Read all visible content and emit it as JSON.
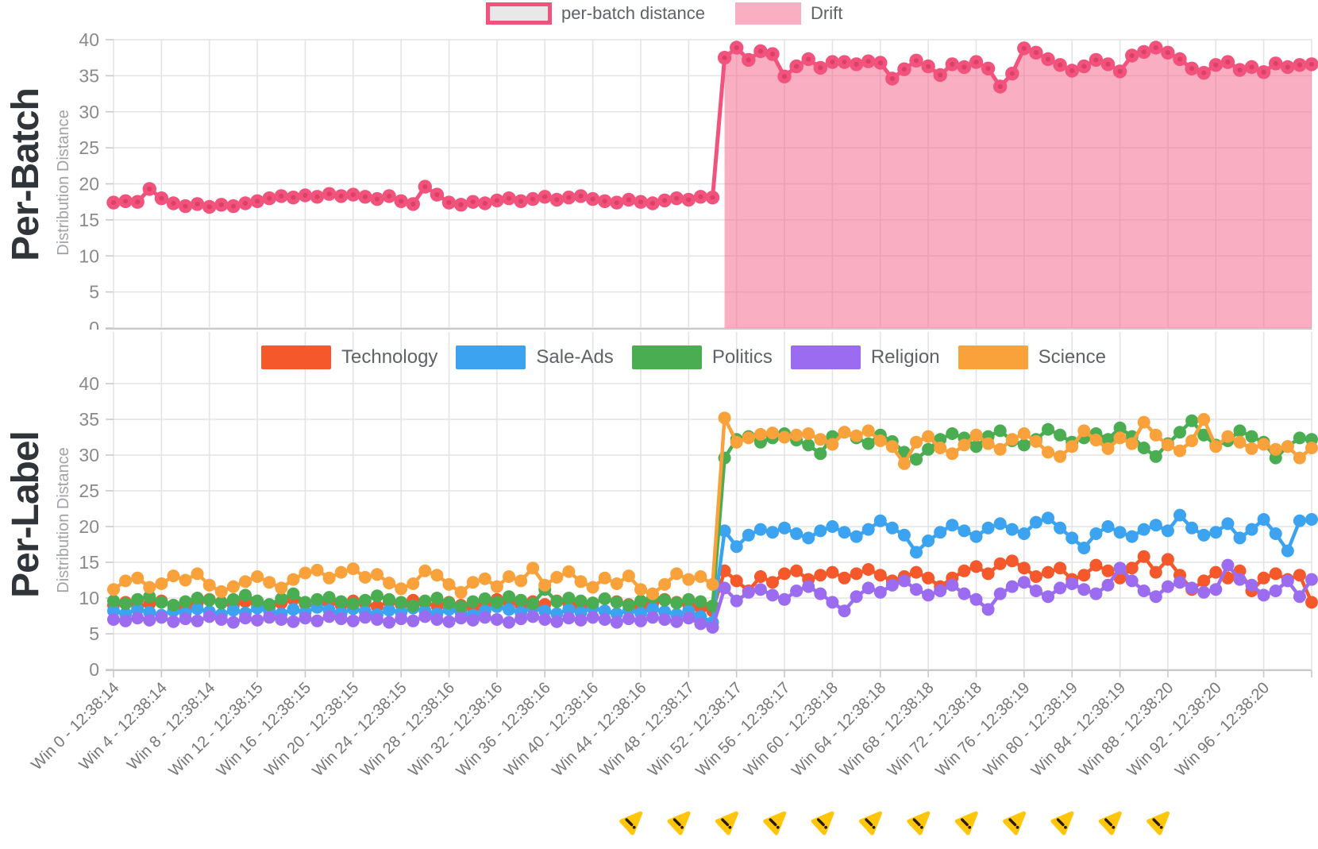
{
  "chart_data": [
    {
      "type": "line",
      "title": "Per-Batch",
      "ylabel": "Distribution Distance",
      "ylim": [
        0,
        40
      ],
      "ytick_step": 5,
      "x_window_range": [
        0,
        100
      ],
      "grid": true,
      "legend_position": "top-center",
      "legend": [
        {
          "label": "per-batch distance",
          "swatch": "outlined",
          "fill": "#E8E8E8",
          "border": "#F2537D"
        },
        {
          "label": "Drift",
          "swatch": "filled",
          "fill": "rgba(243,100,138,0.52)"
        }
      ],
      "series": [
        {
          "name": "per-batch distance",
          "color": "#F2537D",
          "marker_inner_color": "#DC4069",
          "values": [
            17.4,
            17.6,
            17.5,
            19.3,
            18.0,
            17.3,
            16.9,
            17.2,
            16.8,
            17.1,
            16.9,
            17.3,
            17.6,
            18.0,
            18.3,
            18.1,
            18.4,
            18.2,
            18.6,
            18.3,
            18.5,
            18.2,
            17.9,
            18.3,
            17.6,
            17.2,
            19.6,
            18.5,
            17.4,
            17.1,
            17.5,
            17.3,
            17.7,
            18.0,
            17.6,
            17.9,
            18.2,
            17.8,
            18.1,
            18.3,
            17.9,
            17.6,
            17.4,
            17.8,
            17.5,
            17.3,
            17.7,
            18.0,
            17.8,
            18.2,
            18.1,
            37.5,
            38.9,
            37.2,
            38.4,
            38.0,
            34.9,
            36.3,
            37.3,
            36.1,
            36.9,
            36.9,
            36.6,
            37.0,
            36.8,
            34.6,
            35.9,
            37.1,
            36.3,
            35.1,
            36.6,
            36.2,
            36.9,
            36.0,
            33.5,
            35.3,
            38.8,
            38.2,
            37.3,
            36.5,
            35.7,
            36.3,
            37.2,
            36.6,
            35.6,
            37.8,
            38.3,
            38.9,
            38.2,
            37.3,
            36.0,
            35.4,
            36.5,
            36.9,
            35.8,
            36.2,
            35.5,
            36.7,
            36.2,
            36.5,
            36.6
          ]
        }
      ],
      "drift_region": {
        "label": "Drift",
        "start_window": 51,
        "end_window": 100,
        "fill": "rgba(243,100,138,0.52)"
      }
    },
    {
      "type": "line",
      "title": "Per-Label",
      "ylabel": "Distribution Distance",
      "ylim": [
        0,
        40
      ],
      "ytick_step": 5,
      "x_window_range": [
        0,
        100
      ],
      "grid": true,
      "legend_position": "top-left-of-plot",
      "x_tick_labels": [
        "Win 0 - 12:38:14",
        "Win 4 - 12:38:14",
        "Win 8 - 12:38:14",
        "Win 12 - 12:38:15",
        "Win 16 - 12:38:15",
        "Win 20 - 12:38:15",
        "Win 24 - 12:38:15",
        "Win 28 - 12:38:16",
        "Win 32 - 12:38:16",
        "Win 36 - 12:38:16",
        "Win 40 - 12:38:16",
        "Win 44 - 12:38:16",
        "Win 48 - 12:38:17",
        "Win 52 - 12:38:17",
        "Win 56 - 12:38:17",
        "Win 60 - 12:38:18",
        "Win 64 - 12:38:18",
        "Win 68 - 12:38:18",
        "Win 72 - 12:38:18",
        "Win 76 - 12:38:19",
        "Win 80 - 12:38:19",
        "Win 84 - 12:38:19",
        "Win 88 - 12:38:20",
        "Win 92 - 12:38:20",
        "Win 96 - 12:38:20"
      ],
      "drift_warning_label_indices": [
        13,
        14,
        15,
        16,
        17,
        18,
        19,
        20,
        21,
        22,
        23,
        24
      ],
      "warning_icon": {
        "name": "drift-warning-icon",
        "fill": "#FFC60B",
        "glyph": "!",
        "glyph_color": "#2A1A00"
      },
      "series": [
        {
          "name": "Technology",
          "color": "#F4582B",
          "values": [
            9.0,
            9.4,
            8.8,
            9.2,
            9.6,
            9.0,
            8.6,
            9.3,
            9.8,
            9.4,
            9.0,
            9.5,
            9.1,
            8.7,
            9.3,
            9.8,
            9.2,
            8.8,
            9.4,
            9.0,
            9.6,
            9.2,
            8.8,
            9.5,
            9.1,
            9.7,
            9.3,
            8.9,
            9.4,
            9.0,
            8.6,
            9.2,
            9.8,
            9.4,
            9.0,
            9.5,
            9.1,
            9.6,
            9.2,
            8.8,
            9.3,
            9.9,
            9.5,
            9.1,
            8.7,
            9.2,
            9.8,
            9.4,
            9.0,
            8.6,
            8.2,
            13.8,
            12.4,
            11.0,
            13.0,
            12.2,
            13.4,
            13.8,
            12.6,
            13.2,
            13.6,
            12.8,
            13.4,
            14.0,
            13.2,
            12.4,
            13.0,
            13.6,
            12.8,
            11.6,
            12.8,
            13.8,
            14.4,
            13.4,
            14.8,
            15.2,
            14.2,
            13.0,
            13.6,
            14.2,
            12.6,
            13.2,
            14.6,
            13.8,
            12.8,
            14.2,
            15.8,
            13.6,
            15.4,
            13.2,
            11.2,
            12.4,
            13.6,
            12.8,
            13.8,
            11.0,
            12.8,
            13.4,
            12.6,
            13.2,
            9.4
          ]
        },
        {
          "name": "Sale-Ads",
          "color": "#3BA3EF",
          "values": [
            8.2,
            7.8,
            8.4,
            8.0,
            7.6,
            8.2,
            7.9,
            8.5,
            8.1,
            7.7,
            8.3,
            7.9,
            8.6,
            8.2,
            7.8,
            8.4,
            8.0,
            8.7,
            8.3,
            7.9,
            8.5,
            8.1,
            7.7,
            8.3,
            8.0,
            8.6,
            8.2,
            7.8,
            8.4,
            8.0,
            7.6,
            8.2,
            8.8,
            8.4,
            8.0,
            8.6,
            8.2,
            7.8,
            8.4,
            8.0,
            8.6,
            8.2,
            7.8,
            8.3,
            7.9,
            8.5,
            8.1,
            7.7,
            8.2,
            7.4,
            6.6,
            19.4,
            17.2,
            18.8,
            19.6,
            19.2,
            19.8,
            19.0,
            18.4,
            19.4,
            20.0,
            19.2,
            18.6,
            19.6,
            20.8,
            19.8,
            18.8,
            16.4,
            18.0,
            19.2,
            20.2,
            19.4,
            18.6,
            19.8,
            20.4,
            19.6,
            19.0,
            20.6,
            21.2,
            19.8,
            18.4,
            17.0,
            19.0,
            20.0,
            19.2,
            18.6,
            19.6,
            20.2,
            19.4,
            21.6,
            19.8,
            18.8,
            19.2,
            20.4,
            18.4,
            19.6,
            21.0,
            19.0,
            16.6,
            20.8,
            21.0
          ]
        },
        {
          "name": "Politics",
          "color": "#4BAD52",
          "values": [
            9.6,
            9.2,
            9.8,
            10.2,
            9.4,
            9.0,
            9.5,
            10.0,
            9.7,
            9.3,
            9.8,
            10.4,
            9.6,
            9.1,
            9.9,
            10.6,
            9.4,
            9.8,
            10.1,
            9.5,
            9.2,
            9.7,
            10.3,
            9.8,
            9.4,
            8.9,
            9.6,
            10.0,
            9.3,
            8.8,
            9.5,
            9.9,
            9.4,
            10.2,
            9.7,
            9.2,
            11.2,
            9.5,
            10.0,
            9.6,
            9.3,
            9.9,
            9.4,
            9.0,
            9.6,
            10.1,
            9.7,
            9.3,
            9.8,
            9.5,
            8.9,
            29.6,
            32.2,
            32.6,
            31.8,
            32.4,
            33.0,
            32.1,
            31.4,
            30.2,
            32.6,
            33.2,
            32.4,
            31.6,
            32.8,
            31.9,
            30.4,
            29.4,
            30.8,
            32.2,
            33.0,
            32.4,
            31.2,
            32.6,
            33.4,
            32.0,
            31.4,
            32.2,
            33.6,
            32.8,
            31.8,
            32.4,
            33.0,
            32.2,
            33.8,
            32.6,
            31.0,
            29.8,
            31.6,
            33.2,
            34.8,
            32.8,
            31.4,
            32.0,
            33.4,
            32.6,
            31.8,
            29.6,
            31.2,
            32.4,
            32.2
          ]
        },
        {
          "name": "Religion",
          "color": "#9C6CF0",
          "values": [
            7.0,
            6.8,
            7.2,
            6.9,
            7.3,
            6.7,
            7.1,
            6.8,
            7.4,
            7.0,
            6.6,
            7.2,
            6.9,
            7.3,
            7.0,
            6.7,
            7.2,
            6.8,
            7.4,
            7.1,
            6.8,
            7.3,
            7.0,
            6.6,
            7.1,
            6.8,
            7.4,
            7.0,
            6.7,
            7.2,
            6.9,
            7.3,
            7.0,
            6.6,
            7.1,
            7.4,
            7.0,
            6.7,
            7.2,
            6.9,
            7.3,
            7.0,
            6.6,
            7.1,
            6.8,
            7.3,
            7.0,
            6.7,
            7.2,
            6.4,
            5.9,
            11.4,
            9.6,
            10.8,
            11.2,
            10.4,
            9.8,
            11.0,
            11.6,
            10.6,
            9.4,
            8.2,
            10.2,
            11.4,
            10.8,
            11.8,
            12.4,
            11.2,
            10.4,
            11.0,
            11.8,
            10.6,
            9.8,
            8.4,
            10.6,
            11.6,
            12.2,
            11.0,
            10.2,
            11.4,
            12.0,
            11.2,
            10.6,
            11.8,
            14.2,
            12.4,
            11.0,
            10.2,
            11.6,
            12.2,
            11.4,
            10.8,
            11.2,
            14.6,
            12.6,
            11.8,
            10.4,
            11.0,
            12.4,
            10.2,
            12.6
          ]
        },
        {
          "name": "Science",
          "color": "#F9A23C",
          "values": [
            11.2,
            12.4,
            12.8,
            11.5,
            12.0,
            13.1,
            12.5,
            13.4,
            11.8,
            10.9,
            11.6,
            12.3,
            13.0,
            12.2,
            11.4,
            12.6,
            13.5,
            13.9,
            12.8,
            13.6,
            14.1,
            12.9,
            13.3,
            12.1,
            11.3,
            12.0,
            13.8,
            13.2,
            11.9,
            10.8,
            12.2,
            12.7,
            11.6,
            13.0,
            12.4,
            14.2,
            11.8,
            12.9,
            13.7,
            12.3,
            11.5,
            12.8,
            12.0,
            13.1,
            11.2,
            10.6,
            11.9,
            13.4,
            12.6,
            13.0,
            11.9,
            35.2,
            31.8,
            32.4,
            32.9,
            33.1,
            32.5,
            32.8,
            33.0,
            32.2,
            31.5,
            33.2,
            32.7,
            33.4,
            32.0,
            31.2,
            28.8,
            31.8,
            32.6,
            31.0,
            30.2,
            31.4,
            32.8,
            31.6,
            30.8,
            32.2,
            33.0,
            31.9,
            30.4,
            29.8,
            31.2,
            33.4,
            32.1,
            30.9,
            32.4,
            31.6,
            34.6,
            32.8,
            31.4,
            30.6,
            32.0,
            35.0,
            31.2,
            32.6,
            31.8,
            30.9,
            31.5,
            30.8,
            31.2,
            29.6,
            31.0
          ]
        }
      ]
    }
  ]
}
